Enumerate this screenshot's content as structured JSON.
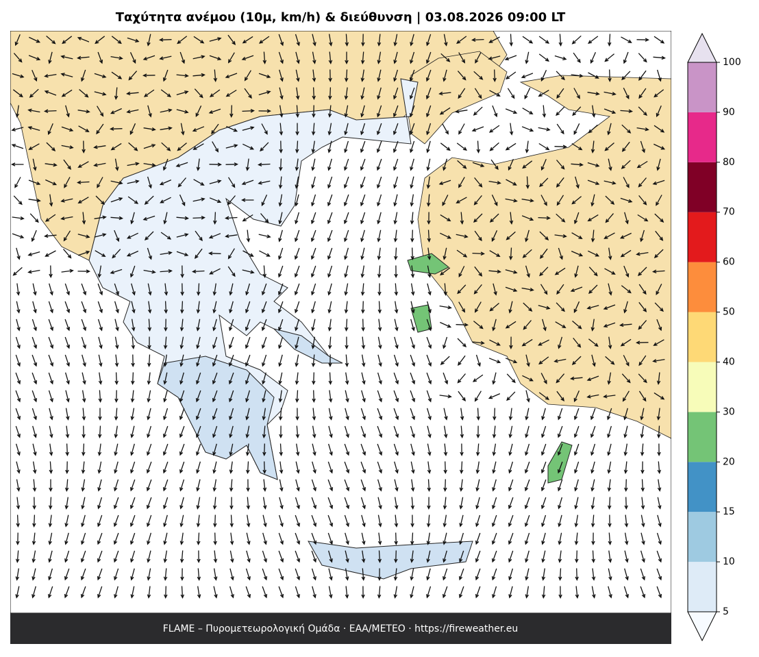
{
  "title": "Ταχύτητα ανέμου (10μ, km/h) & διεύθυνση  |  03.08.2026 09:00 LT",
  "footer": "FLAME – Πυρομετεωρολογική Ομάδα · ΕΑΑ/METEO · https://fireweather.eu",
  "colorbar": {
    "ticks": [
      5,
      10,
      15,
      20,
      30,
      40,
      50,
      60,
      70,
      80,
      90,
      100
    ],
    "colors": [
      "#deebf7",
      "#9ecae1",
      "#4292c6",
      "#74c476",
      "#f7fcb9",
      "#fed976",
      "#fd8d3c",
      "#e31a1c",
      "#800026",
      "#e7298a",
      "#c994c7"
    ],
    "under_color": "#f7fbff",
    "over_color": "#e7e1ef"
  }
}
